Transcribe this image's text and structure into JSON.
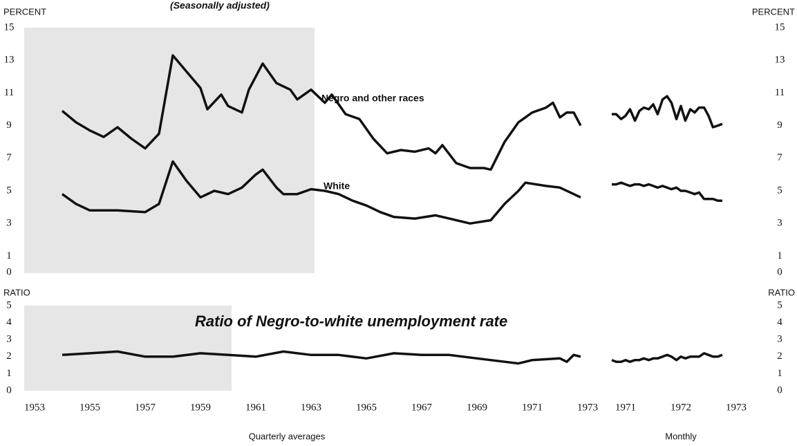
{
  "subtitle": "(Seasonally adjusted)",
  "chart_data": [
    {
      "type": "line",
      "ylabel": "PERCENT",
      "xlim": [
        1952.625,
        1972.875
      ],
      "ylim": [
        0,
        15
      ],
      "yticks": [
        0,
        1,
        3,
        5,
        7,
        9,
        11,
        13,
        15
      ],
      "series": [
        {
          "name": "Negro and other races",
          "color": "#111111",
          "x": [
            1954,
            1954.5,
            1955,
            1955.5,
            1956,
            1956.5,
            1957,
            1957.5,
            1958,
            1958.5,
            1959,
            1959.25,
            1959.75,
            1960,
            1960.5,
            1960.75,
            1961.25,
            1961.75,
            1962.25,
            1962.5,
            1963,
            1963.5,
            1963.75,
            1964.25,
            1964.75,
            1965.25,
            1965.75,
            1966.25,
            1966.75,
            1967.25,
            1967.5,
            1967.75,
            1968.25,
            1968.75,
            1969.25,
            1969.5,
            1970,
            1970.5,
            1971,
            1971.5,
            1971.75,
            1972,
            1972.25,
            1972.5,
            1972.75
          ],
          "values": [
            9.9,
            9.2,
            8.7,
            8.3,
            8.9,
            8.2,
            7.6,
            8.5,
            13.3,
            12.3,
            11.3,
            10.0,
            10.9,
            10.2,
            9.8,
            11.2,
            12.8,
            11.6,
            11.2,
            10.6,
            11.2,
            10.4,
            10.9,
            9.7,
            9.4,
            8.2,
            7.3,
            7.5,
            7.4,
            7.6,
            7.3,
            7.8,
            6.7,
            6.4,
            6.4,
            6.3,
            8.0,
            9.2,
            9.8,
            10.1,
            10.4,
            9.5,
            9.8,
            9.8,
            9.0
          ]
        },
        {
          "name": "White",
          "color": "#111111",
          "x": [
            1954,
            1954.5,
            1955,
            1956,
            1957,
            1957.5,
            1958,
            1958.5,
            1959,
            1959.5,
            1960,
            1960.5,
            1961,
            1961.25,
            1961.75,
            1962,
            1962.5,
            1963,
            1963.5,
            1964,
            1964.5,
            1965,
            1965.5,
            1966,
            1966.75,
            1967.5,
            1968,
            1968.75,
            1969.5,
            1970,
            1970.5,
            1970.75,
            1971.5,
            1972,
            1972.5,
            1972.75
          ],
          "values": [
            4.8,
            4.2,
            3.8,
            3.8,
            3.7,
            4.2,
            6.8,
            5.6,
            4.6,
            5.0,
            4.8,
            5.2,
            6.0,
            6.3,
            5.2,
            4.8,
            4.8,
            5.1,
            5.0,
            4.8,
            4.4,
            4.1,
            3.7,
            3.4,
            3.3,
            3.5,
            3.3,
            3.0,
            3.2,
            4.2,
            5.0,
            5.5,
            5.3,
            5.2,
            4.8,
            4.6
          ]
        }
      ]
    },
    {
      "type": "line",
      "ylabel": "PERCENT",
      "xlim": [
        1970.4375,
        1973.3125
      ],
      "ylim": [
        0,
        15
      ],
      "yticks": [
        0,
        1,
        3,
        5,
        7,
        9,
        11,
        13,
        15
      ],
      "series": [
        {
          "color": "#111111",
          "x": [
            1970.75,
            1970.83,
            1970.92,
            1971,
            1971.08,
            1971.17,
            1971.25,
            1971.33,
            1971.42,
            1971.5,
            1971.58,
            1971.67,
            1971.75,
            1971.83,
            1971.92,
            1972,
            1972.08,
            1972.17,
            1972.25,
            1972.33,
            1972.42,
            1972.5,
            1972.58,
            1972.67,
            1972.75
          ],
          "values": [
            9.7,
            9.7,
            9.4,
            9.6,
            10.0,
            9.3,
            9.9,
            10.1,
            10.0,
            10.3,
            9.7,
            10.6,
            10.8,
            10.4,
            9.4,
            10.2,
            9.3,
            10.0,
            9.8,
            10.1,
            10.1,
            9.6,
            8.9,
            9.0,
            9.1
          ]
        },
        {
          "color": "#111111",
          "x": [
            1970.75,
            1970.83,
            1970.92,
            1971,
            1971.08,
            1971.17,
            1971.25,
            1971.33,
            1971.42,
            1971.5,
            1971.58,
            1971.67,
            1971.75,
            1971.83,
            1971.92,
            1972,
            1972.08,
            1972.17,
            1972.25,
            1972.33,
            1972.42,
            1972.5,
            1972.58,
            1972.67,
            1972.75
          ],
          "values": [
            5.4,
            5.4,
            5.5,
            5.4,
            5.3,
            5.4,
            5.4,
            5.3,
            5.4,
            5.3,
            5.2,
            5.3,
            5.2,
            5.1,
            5.2,
            5.0,
            5.0,
            4.9,
            4.8,
            4.9,
            4.5,
            4.5,
            4.5,
            4.4,
            4.4
          ]
        }
      ]
    },
    {
      "type": "line",
      "ylabel": "RATIO",
      "xlabel": "Quarterly averages",
      "xlim": [
        1952.625,
        1972.875
      ],
      "ylim": [
        0,
        5
      ],
      "yticks": [
        0,
        1,
        2,
        3,
        4,
        5
      ],
      "xticks": [
        1953,
        1955,
        1957,
        1959,
        1961,
        1963,
        1965,
        1967,
        1969,
        1971,
        1973
      ],
      "series": [
        {
          "name": "Ratio of Negro-to-white unemployment rate",
          "color": "#111111",
          "x": [
            1954,
            1955,
            1956,
            1957,
            1958,
            1959,
            1960,
            1961,
            1962,
            1963,
            1964,
            1965,
            1966,
            1967,
            1968,
            1969,
            1970,
            1970.5,
            1971,
            1972,
            1972.25,
            1972.5,
            1972.75
          ],
          "values": [
            2.1,
            2.2,
            2.3,
            2.0,
            2.0,
            2.2,
            2.1,
            2.0,
            2.3,
            2.1,
            2.1,
            1.9,
            2.2,
            2.1,
            2.1,
            1.9,
            1.7,
            1.6,
            1.8,
            1.9,
            1.7,
            2.1,
            2.0
          ]
        }
      ]
    },
    {
      "type": "line",
      "ylabel": "RATIO",
      "xlabel": "Monthly",
      "xlim": [
        1970.4375,
        1973.3125
      ],
      "ylim": [
        0,
        5
      ],
      "yticks": [
        0,
        1,
        2,
        3,
        4,
        5
      ],
      "xticks": [
        1971,
        1972,
        1973
      ],
      "series": [
        {
          "color": "#111111",
          "x": [
            1970.75,
            1970.83,
            1970.92,
            1971,
            1971.08,
            1971.17,
            1971.25,
            1971.33,
            1971.42,
            1971.5,
            1971.58,
            1971.67,
            1971.75,
            1971.83,
            1971.92,
            1972,
            1972.08,
            1972.17,
            1972.25,
            1972.33,
            1972.42,
            1972.5,
            1972.58,
            1972.67,
            1972.75
          ],
          "values": [
            1.8,
            1.7,
            1.7,
            1.8,
            1.7,
            1.8,
            1.8,
            1.9,
            1.8,
            1.9,
            1.9,
            2.0,
            2.1,
            2.0,
            1.8,
            2.0,
            1.9,
            2.0,
            2.0,
            2.0,
            2.2,
            2.1,
            2.0,
            2.0,
            2.1
          ]
        }
      ]
    }
  ]
}
